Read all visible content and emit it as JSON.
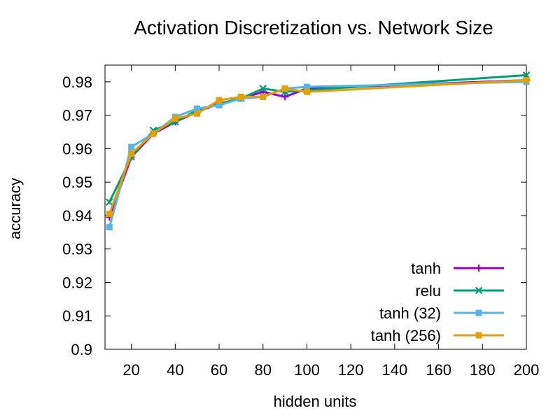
{
  "chart_data": {
    "type": "line",
    "title": "Activation Discretization vs. Network Size",
    "xlabel": "hidden units",
    "ylabel": "accuracy",
    "xlim": [
      8,
      200
    ],
    "ylim": [
      0.9,
      0.985
    ],
    "xticks": [
      20,
      40,
      60,
      80,
      100,
      120,
      140,
      160,
      180,
      200
    ],
    "xtick_labels": [
      "20",
      "40",
      "60",
      "80",
      "100",
      "120",
      "140",
      "160",
      "180",
      "200"
    ],
    "yticks": [
      0.9,
      0.91,
      0.92,
      0.93,
      0.94,
      0.95,
      0.96,
      0.97,
      0.98
    ],
    "ytick_labels": [
      "0.9",
      "0.91",
      "0.92",
      "0.93",
      "0.94",
      "0.95",
      "0.96",
      "0.97",
      "0.98"
    ],
    "legend_position": "bottom-right",
    "series": [
      {
        "name": "tanh",
        "color": "#9400d3",
        "marker": "plus",
        "x": [
          10,
          20,
          30,
          40,
          50,
          60,
          70,
          80,
          90,
          100,
          200
        ],
        "y": [
          0.9395,
          0.9575,
          0.9645,
          0.968,
          0.971,
          0.9735,
          0.975,
          0.977,
          0.9755,
          0.978,
          0.9805
        ]
      },
      {
        "name": "relu",
        "color": "#009e73",
        "marker": "cross",
        "x": [
          10,
          20,
          30,
          40,
          50,
          60,
          70,
          80,
          90,
          100,
          200
        ],
        "y": [
          0.944,
          0.9575,
          0.9655,
          0.968,
          0.9715,
          0.9735,
          0.975,
          0.978,
          0.977,
          0.9775,
          0.982
        ]
      },
      {
        "name": "tanh (32)",
        "color": "#56b4e9",
        "marker": "square",
        "x": [
          10,
          20,
          30,
          40,
          50,
          60,
          70,
          80,
          90,
          100,
          200
        ],
        "y": [
          0.9365,
          0.9605,
          0.9645,
          0.9695,
          0.972,
          0.973,
          0.975,
          0.9755,
          0.978,
          0.9785,
          0.98
        ]
      },
      {
        "name": "tanh (256)",
        "color": "#e69f00",
        "marker": "square",
        "x": [
          10,
          20,
          30,
          40,
          50,
          60,
          70,
          80,
          90,
          100,
          200
        ],
        "y": [
          0.9405,
          0.9585,
          0.9645,
          0.969,
          0.9705,
          0.9745,
          0.9755,
          0.9755,
          0.978,
          0.977,
          0.9805
        ]
      }
    ]
  }
}
